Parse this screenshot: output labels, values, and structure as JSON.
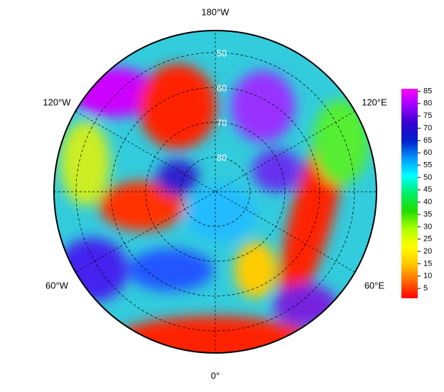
{
  "map": {
    "longitude_labels": {
      "top": "180°W",
      "upper_left": "120°W",
      "upper_right": "120°E",
      "lower_left": "60°W",
      "lower_right": "60°E",
      "bottom": "0°"
    },
    "latitude_labels": [
      80,
      70,
      60,
      50
    ]
  },
  "colorbar": {
    "lim": [
      1,
      86
    ],
    "ticks": [
      5,
      10,
      15,
      20,
      25,
      30,
      35,
      40,
      45,
      50,
      55,
      60,
      65,
      70,
      75,
      80,
      85
    ],
    "colors": [
      "#ff0000",
      "#ff6a00",
      "#ffcc00",
      "#ffff00",
      "#aaff00",
      "#22dd00",
      "#00ee66",
      "#00ffff",
      "#0099ff",
      "#0022cc",
      "#3300cc",
      "#9900ff",
      "#ff00ff"
    ]
  }
}
